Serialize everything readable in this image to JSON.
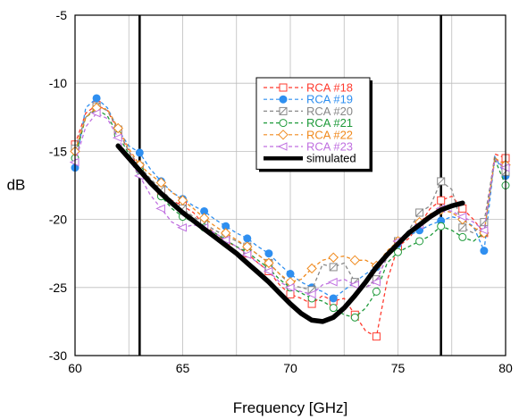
{
  "chart_data": {
    "type": "line",
    "xlabel": "Frequency [GHz]",
    "ylabel": "dB",
    "xlim": [
      60,
      80
    ],
    "ylim": [
      -30,
      -5
    ],
    "x_ticks": [
      60,
      65,
      70,
      75,
      80
    ],
    "y_ticks": [
      -30,
      -25,
      -20,
      -15,
      -10,
      -5
    ],
    "grid": true,
    "legend_position": "top-center",
    "vertical_lines": [
      63,
      77
    ],
    "series": [
      {
        "name": "RCA #18",
        "color": "#ff3b2f",
        "marker": "open-square",
        "dashed": true,
        "x": [
          60,
          60.5,
          61,
          61.5,
          62,
          62.5,
          63,
          63.5,
          64,
          64.5,
          65,
          65.5,
          66,
          66.5,
          67,
          67.5,
          68,
          68.5,
          69,
          69.5,
          70,
          70.5,
          71,
          71.5,
          72,
          72.5,
          73,
          73.5,
          74,
          74.5,
          75,
          75.5,
          76,
          76.5,
          77,
          77.5,
          78,
          78.5,
          79,
          79.5,
          80
        ],
        "values": [
          -14.5,
          -12.2,
          -11.6,
          -12,
          -13.5,
          -15,
          -16.2,
          -17.2,
          -18,
          -18.6,
          -19,
          -19.5,
          -20.4,
          -21,
          -21.6,
          -22,
          -22.5,
          -23.2,
          -23.8,
          -24.8,
          -25.5,
          -25.8,
          -26.2,
          -25.6,
          -26,
          -25.8,
          -27,
          -28.2,
          -28.6,
          -24.5,
          -22,
          -21.4,
          -20.4,
          -19.2,
          -18.6,
          -18.3,
          -19.2,
          -20,
          -21,
          -15.2,
          -15.5
        ]
      },
      {
        "name": "RCA #19",
        "color": "#2f8ff0",
        "marker": "filled-circle",
        "dashed": true,
        "x": [
          60,
          60.5,
          61,
          61.5,
          62,
          62.5,
          63,
          63.5,
          64,
          64.5,
          65,
          65.5,
          66,
          66.5,
          67,
          67.5,
          68,
          68.5,
          69,
          69.5,
          70,
          70.5,
          71,
          71.5,
          72,
          72.5,
          73,
          73.5,
          74,
          74.5,
          75,
          75.5,
          76,
          76.5,
          77,
          77.5,
          78,
          78.5,
          79,
          79.5,
          80
        ],
        "values": [
          -16.2,
          -11.8,
          -11.1,
          -11.8,
          -13.4,
          -14.6,
          -15.1,
          -16.3,
          -17.2,
          -18,
          -18.5,
          -19,
          -19.4,
          -20,
          -20.5,
          -21,
          -21.4,
          -22,
          -22.5,
          -23.3,
          -24,
          -24.6,
          -25,
          -25.3,
          -25.8,
          -25.2,
          -24.6,
          -24,
          -23.5,
          -22.5,
          -21.8,
          -21.2,
          -20.8,
          -20.4,
          -20.1,
          -19.8,
          -20,
          -20.5,
          -22.3,
          -15.4,
          -16.8
        ]
      },
      {
        "name": "RCA #20",
        "color": "#888888",
        "marker": "open-square-x",
        "dashed": true,
        "x": [
          60,
          60.5,
          61,
          61.5,
          62,
          62.5,
          63,
          63.5,
          64,
          64.5,
          65,
          65.5,
          66,
          66.5,
          67,
          67.5,
          68,
          68.5,
          69,
          69.5,
          70,
          70.5,
          71,
          71.5,
          72,
          72.5,
          73,
          73.5,
          74,
          74.5,
          75,
          75.5,
          76,
          76.5,
          77,
          77.5,
          78,
          78.5,
          79,
          79.5,
          80
        ],
        "values": [
          -14.8,
          -12.5,
          -11.7,
          -12,
          -13.4,
          -15,
          -16.1,
          -17,
          -17.8,
          -18.6,
          -19.2,
          -19.8,
          -20.3,
          -20.8,
          -21.2,
          -21.6,
          -22,
          -22.6,
          -23.2,
          -24,
          -24.8,
          -25,
          -25.2,
          -23.3,
          -23.5,
          -23.2,
          -24.6,
          -25,
          -24.4,
          -22.8,
          -21.6,
          -20.8,
          -19.5,
          -19,
          -17.2,
          -17.8,
          -20.6,
          -21,
          -20.2,
          -15.4,
          -16.5
        ]
      },
      {
        "name": "RCA #21",
        "color": "#1e9a3a",
        "marker": "open-circle",
        "dashed": true,
        "x": [
          60,
          60.5,
          61,
          61.5,
          62,
          62.5,
          63,
          63.5,
          64,
          64.5,
          65,
          65.5,
          66,
          66.5,
          67,
          67.5,
          68,
          68.5,
          69,
          69.5,
          70,
          70.5,
          71,
          71.5,
          72,
          72.5,
          73,
          73.5,
          74,
          74.5,
          75,
          75.5,
          76,
          76.5,
          77,
          77.5,
          78,
          78.5,
          79,
          79.5,
          80
        ],
        "values": [
          -15.5,
          -12.5,
          -11.9,
          -12.4,
          -13.8,
          -15.2,
          -16.4,
          -17.4,
          -18.3,
          -19.2,
          -19.8,
          -20.2,
          -20.6,
          -21,
          -21.5,
          -22,
          -22.4,
          -23,
          -23.6,
          -24.4,
          -25,
          -25.4,
          -25.8,
          -26,
          -26.5,
          -27,
          -27.2,
          -26.5,
          -25.3,
          -23.2,
          -22.4,
          -22,
          -21.6,
          -21.2,
          -20.5,
          -20.8,
          -21.3,
          -21.6,
          -21,
          -15.6,
          -17.5
        ]
      },
      {
        "name": "RCA #22",
        "color": "#f08a1e",
        "marker": "open-diamond",
        "dashed": true,
        "x": [
          60,
          60.5,
          61,
          61.5,
          62,
          62.5,
          63,
          63.5,
          64,
          64.5,
          65,
          65.5,
          66,
          66.5,
          67,
          67.5,
          68,
          68.5,
          69,
          69.5,
          70,
          70.5,
          71,
          71.5,
          72,
          72.5,
          73,
          73.5,
          74,
          74.5,
          75,
          75.5,
          76,
          76.5,
          77,
          77.5,
          78,
          78.5,
          79,
          79.5,
          80
        ],
        "values": [
          -15,
          -12.5,
          -11.8,
          -11.9,
          -13.3,
          -14.8,
          -16,
          -16.7,
          -17.3,
          -18,
          -18.6,
          -19.2,
          -19.9,
          -20.5,
          -21,
          -21.5,
          -22,
          -22.6,
          -23.2,
          -24,
          -24.6,
          -24.4,
          -23.6,
          -23,
          -22.8,
          -22.7,
          -23,
          -23,
          -23.4,
          -22.3,
          -21.6,
          -21,
          -20.2,
          -19.6,
          -19.3,
          -19.5,
          -20,
          -20.6,
          -21,
          -15.5,
          -16
        ]
      },
      {
        "name": "RCA #23",
        "color": "#c070e0",
        "marker": "open-triangle-left",
        "dashed": true,
        "x": [
          60,
          60.5,
          61,
          61.5,
          62,
          62.5,
          63,
          63.5,
          64,
          64.5,
          65,
          65.5,
          66,
          66.5,
          67,
          67.5,
          68,
          68.5,
          69,
          69.5,
          70,
          70.5,
          71,
          71.5,
          72,
          72.5,
          73,
          73.5,
          74,
          74.5,
          75,
          75.5,
          76,
          76.5,
          77,
          77.5,
          78,
          78.5,
          79,
          79.5,
          80
        ],
        "values": [
          -15.8,
          -13.2,
          -12.2,
          -12.6,
          -14,
          -15.6,
          -16.8,
          -18.2,
          -19.2,
          -20.2,
          -20.6,
          -20.4,
          -20.6,
          -21,
          -21.5,
          -22,
          -22.6,
          -23.2,
          -23.8,
          -24.6,
          -25,
          -25.3,
          -25.5,
          -24.8,
          -24.6,
          -24.4,
          -24.8,
          -25,
          -24.6,
          -22.6,
          -21.6,
          -21,
          -20.4,
          -19.8,
          -19.2,
          -19.4,
          -19.8,
          -20.2,
          -20.8,
          -15.6,
          -16.2
        ]
      },
      {
        "name": "simulated",
        "color": "#000000",
        "marker": "none",
        "dashed": false,
        "thick": true,
        "x": [
          62,
          62.5,
          63,
          63.5,
          64,
          64.5,
          65,
          65.5,
          66,
          66.5,
          67,
          67.5,
          68,
          68.5,
          69,
          69.5,
          70,
          70.5,
          71,
          71.5,
          72,
          72.5,
          73,
          73.5,
          74,
          74.5,
          75,
          75.5,
          76,
          76.5,
          77,
          77.5,
          78
        ],
        "values": [
          -14.6,
          -15.5,
          -16.4,
          -17.3,
          -18.1,
          -18.8,
          -19.5,
          -20.1,
          -20.7,
          -21.3,
          -21.9,
          -22.5,
          -23.2,
          -23.9,
          -24.6,
          -25.4,
          -26.2,
          -26.9,
          -27.4,
          -27.5,
          -27.2,
          -26.5,
          -25.6,
          -24.6,
          -23.5,
          -22.6,
          -21.8,
          -21,
          -20.4,
          -19.8,
          -19.3,
          -19,
          -18.8
        ]
      }
    ]
  }
}
